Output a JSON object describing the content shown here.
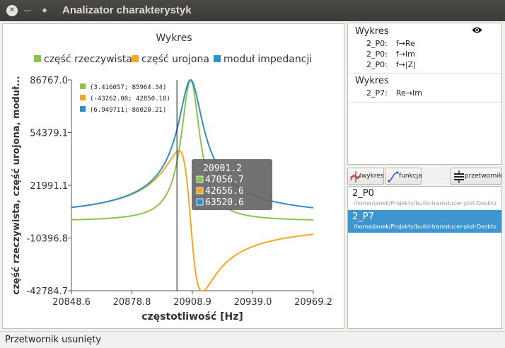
{
  "window": {
    "title": "Analizator charakterystyk"
  },
  "chart_data": {
    "type": "line",
    "title": "Wykres",
    "xlabel": "częstotliwość [Hz]",
    "ylabel": "część rzeczywista, część urojona, moduł...",
    "xlim": [
      20848.6,
      20969.2
    ],
    "ylim": [
      -42784.7,
      86767.0
    ],
    "xticks": [
      "20848.6",
      "20878.8",
      "20908.9",
      "20939.0",
      "20969.2"
    ],
    "yticks": [
      "86767.0",
      "54379.1",
      "21991.1",
      "-10396.8",
      "-42784.7"
    ],
    "resonance": {
      "f0": 20908.0,
      "half_width": 5.8
    },
    "series": [
      {
        "name": "część rzeczywista",
        "color": "#8cc34a",
        "kind": "real",
        "amplitude": 86500,
        "offset": 0
      },
      {
        "name": "część urojona",
        "color": "#f5a623",
        "kind": "imag",
        "amplitude": 86500,
        "offset": 0
      },
      {
        "name": "moduł impedancji",
        "color": "#2e8fcd",
        "kind": "mod",
        "amplitude": 86767,
        "offset": 0
      }
    ],
    "point_labels": [
      {
        "text": "(3.416057; 85964.34)",
        "color": "#8cc34a"
      },
      {
        "text": "(-43262.08; 42850.18)",
        "color": "#f5a623"
      },
      {
        "text": "(6.949711; 86020.21)",
        "color": "#2e8fcd"
      }
    ],
    "cursor": {
      "x": 20901.2,
      "header": "20901.2",
      "values": [
        {
          "text": "47056.7",
          "color": "#8cc34a"
        },
        {
          "text": "42656.6",
          "color": "#f5a623"
        },
        {
          "text": "63520.6",
          "color": "#2e8fcd"
        }
      ]
    },
    "legend_position": "top",
    "grid": false
  },
  "tree": {
    "groups": [
      {
        "title": "Wykres",
        "items": [
          {
            "id": "2_P0:",
            "curve": "f→Re"
          },
          {
            "id": "2_P0:",
            "curve": "f→Im"
          },
          {
            "id": "2_P0:",
            "curve": "f→|Z|"
          }
        ]
      },
      {
        "title": "Wykres",
        "items": [
          {
            "id": "2_P7:",
            "curve": "Re→Im"
          }
        ]
      }
    ]
  },
  "toolbar": {
    "plot_label": "wykres",
    "function_label": "funkcja",
    "transducer_label": "przetwornik"
  },
  "transducers": [
    {
      "name": "2_P0",
      "path": "/home/janek/Projekty/build-transducer-plot-Deskto",
      "selected": false
    },
    {
      "name": "2_P7",
      "path": "/home/janek/Projekty/build-transducer-plot-Deskto",
      "selected": true
    }
  ],
  "status": {
    "text": "Przetwornik usunięty"
  },
  "icons": {
    "close": "close-icon",
    "minimize": "minimize-icon",
    "maximize": "maximize-icon",
    "eye": "eye-icon",
    "plot": "plot-icon",
    "function": "function-icon",
    "transducer": "transducer-icon"
  }
}
